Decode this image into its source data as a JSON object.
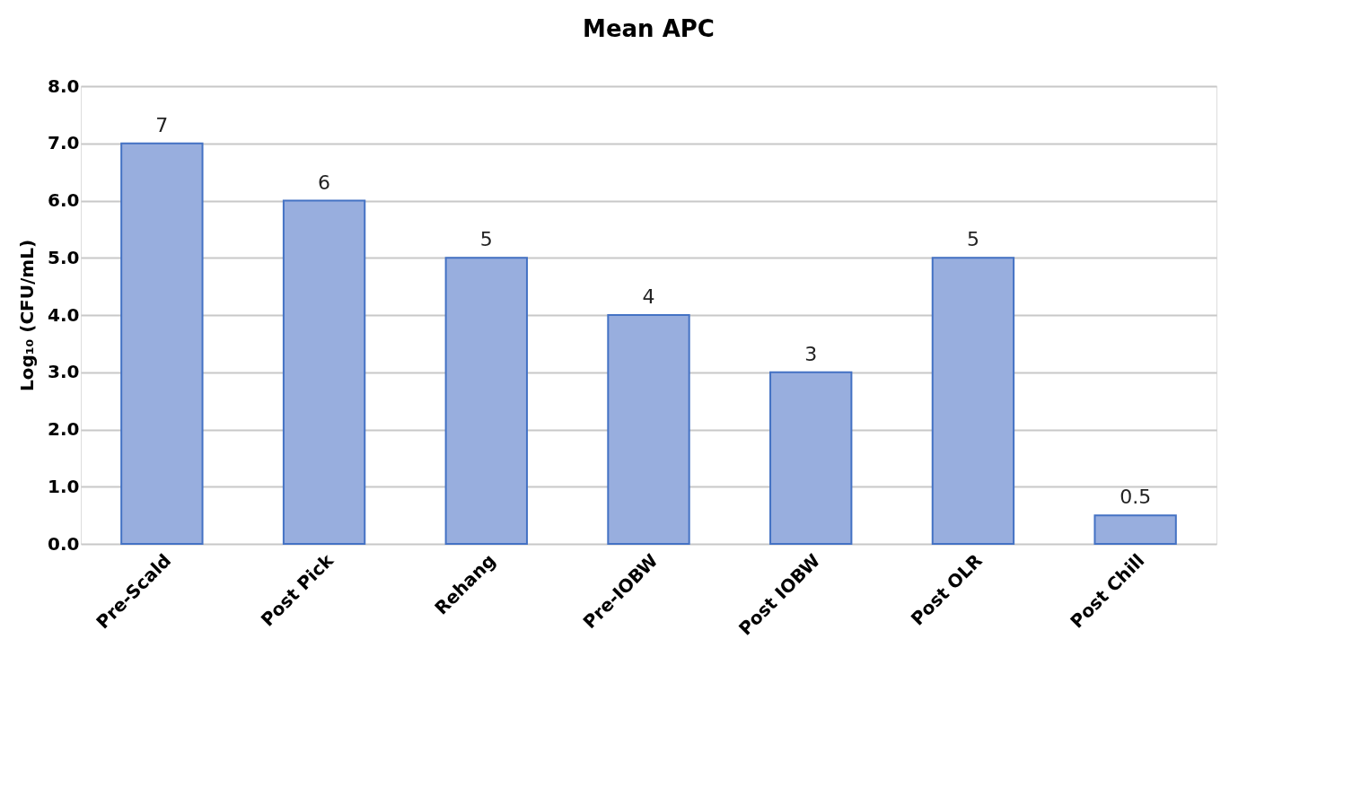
{
  "chart_data": {
    "type": "bar",
    "title": "Mean  APC",
    "ylabel": "Log₁₀ (CFU/mL)",
    "categories": [
      "Pre-Scald",
      "Post Pick",
      "Rehang",
      "Pre-IOBW",
      "Post IOBW",
      "Post OLR",
      "Post Chill"
    ],
    "values": [
      7,
      6,
      5,
      4,
      3,
      5,
      0.5
    ],
    "color": "#98aede",
    "ylim": [
      0,
      8
    ],
    "yticks": [
      {
        "value": 0,
        "label": "0.0"
      },
      {
        "value": 1,
        "label": "1.0"
      },
      {
        "value": 2,
        "label": "2.0"
      },
      {
        "value": 3,
        "label": "3.0"
      },
      {
        "value": 4,
        "label": "4.0"
      },
      {
        "value": 5,
        "label": "5.0"
      },
      {
        "value": 6,
        "label": "6.0"
      },
      {
        "value": 7,
        "label": "7.0"
      },
      {
        "value": 8,
        "label": "8.0"
      }
    ],
    "grid": "y",
    "data_labels": true
  }
}
